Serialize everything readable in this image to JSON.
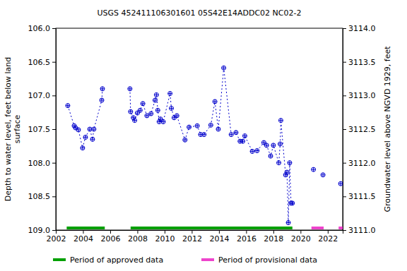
{
  "chart_data": {
    "type": "line",
    "title": "USGS 452411106301601 05S42E14ADDC02 NC02-2",
    "ylabel": [
      "Depth to water level, feet below land",
      "surface"
    ],
    "y2label": "Groundwater level above NGVD 1929, feet",
    "x": [
      2002.88,
      2003.35,
      2003.45,
      2003.66,
      2003.97,
      2004.18,
      2004.5,
      2004.7,
      2004.8,
      2005.38,
      2005.43,
      null,
      2007.45,
      2007.5,
      2007.7,
      2007.8,
      2008.0,
      2008.2,
      2008.4,
      2008.7,
      2009.0,
      2009.3,
      2009.4,
      2009.5,
      2009.6,
      2009.7,
      2009.9,
      2010.4,
      2010.5,
      2010.7,
      2010.9,
      2011.5,
      2011.8,
      2012.4,
      2012.65,
      2012.9,
      2013.4,
      2013.7,
      2013.95,
      2014.35,
      2014.9,
      2015.25,
      2015.55,
      2015.75,
      2015.9,
      2016.45,
      2016.8,
      2017.3,
      2017.5,
      2017.8,
      2018.0,
      2018.4,
      2018.5,
      2018.55,
      2018.9,
      2019.0,
      2019.1,
      2019.2,
      2019.3,
      2019.4,
      null,
      2020.95,
      null,
      2021.65,
      null,
      2022.95
    ],
    "series": [
      {
        "name": "Depth to water level",
        "color": "#0000cc",
        "marker": "circle",
        "line_style": "dashed",
        "values": [
          107.15,
          107.45,
          107.48,
          107.51,
          107.78,
          107.62,
          107.5,
          107.65,
          107.5,
          107.07,
          106.9,
          null,
          106.9,
          107.24,
          107.33,
          107.37,
          107.26,
          107.22,
          107.12,
          107.3,
          107.27,
          107.07,
          106.99,
          107.22,
          107.39,
          107.35,
          107.39,
          106.97,
          107.19,
          107.33,
          107.3,
          107.66,
          107.47,
          107.45,
          107.58,
          107.58,
          107.44,
          107.09,
          107.5,
          106.59,
          107.58,
          107.55,
          107.68,
          107.68,
          107.6,
          107.83,
          107.82,
          107.7,
          107.74,
          107.9,
          107.74,
          108.0,
          107.72,
          107.37,
          108.18,
          108.14,
          108.89,
          108.0,
          108.6,
          108.6,
          null,
          108.1,
          null,
          108.18,
          null,
          108.31
        ]
      }
    ],
    "periods": [
      {
        "name": "Period of approved data",
        "color": "#00a000",
        "ranges": [
          [
            2002.8,
            2005.6
          ],
          [
            2007.5,
            2019.4
          ]
        ]
      },
      {
        "name": "Period of provisional data",
        "color": "#ee44cc",
        "ranges": [
          [
            2020.8,
            2021.7
          ],
          [
            2022.8,
            2023.1
          ]
        ]
      }
    ],
    "legend": "bottom",
    "grid": false,
    "xlim": [
      2002,
      2023.1
    ],
    "xticks": [
      2002,
      2004,
      2006,
      2008,
      2010,
      2012,
      2014,
      2016,
      2018,
      2020,
      2022
    ],
    "ylim": [
      109.0,
      106.0
    ],
    "yticks": [
      {
        "value": 106.0,
        "label": "106.0"
      },
      106.5,
      {
        "value": 107.0,
        "label": "107.0"
      },
      107.5,
      {
        "value": 108.0,
        "label": "108.0"
      },
      108.5,
      {
        "value": 109.0,
        "label": "109.0"
      }
    ],
    "y2lim": [
      3111.0,
      3114.0
    ],
    "y2ticks": [
      {
        "value": 3114.0,
        "label": "3114.0"
      },
      3113.5,
      {
        "value": 3113.0,
        "label": "3113.0"
      },
      3112.5,
      {
        "value": 3112.0,
        "label": "3112.0"
      },
      3111.5,
      {
        "value": 3111.0,
        "label": "3111.0"
      }
    ]
  }
}
